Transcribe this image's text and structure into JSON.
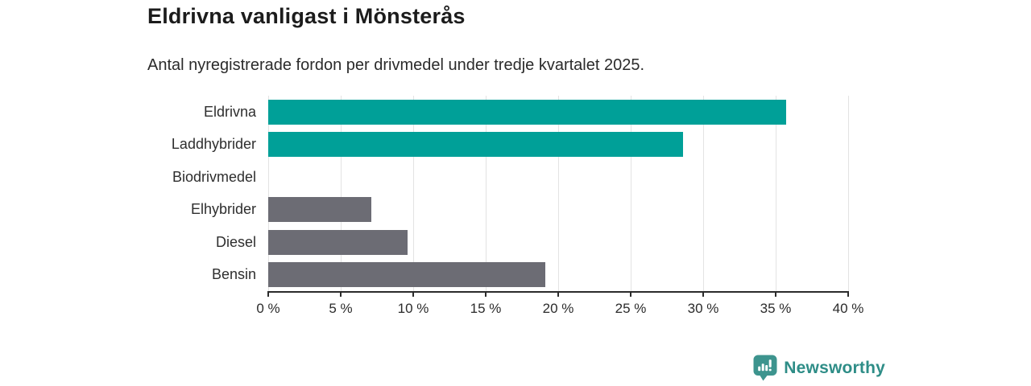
{
  "header": {
    "title": "Eldrivna vanligast i Mönsterås",
    "subtitle": "Antal nyregistrerade fordon per drivmedel under tredje kvartalet 2025."
  },
  "chart_data": {
    "type": "bar",
    "orientation": "horizontal",
    "title": "Eldrivna vanligast i Mönsterås",
    "subtitle": "Antal nyregistrerade fordon per drivmedel under tredje kvartalet 2025.",
    "categories": [
      "Eldrivna",
      "Laddhybrider",
      "Biodrivmedel",
      "Elhybrider",
      "Diesel",
      "Bensin"
    ],
    "values": [
      35.7,
      28.6,
      0,
      7.1,
      9.6,
      19.1
    ],
    "unit": "%",
    "xlabel": "",
    "ylabel": "",
    "xlim": [
      0,
      40
    ],
    "x_ticks": [
      0,
      5,
      10,
      15,
      20,
      25,
      30,
      35,
      40
    ],
    "x_tick_labels": [
      "0 %",
      "5 %",
      "10 %",
      "15 %",
      "20 %",
      "25 %",
      "30 %",
      "35 %",
      "40 %"
    ],
    "bar_colors": [
      "#00a098",
      "#00a098",
      "#00a098",
      "#6c6c74",
      "#6c6c74",
      "#6c6c74"
    ],
    "grid": true,
    "legend": false
  },
  "colors": {
    "accent_teal": "#00a098",
    "neutral_gray": "#6c6c74",
    "gridline": "#e3e3e3",
    "axis": "#2b2b2b",
    "title_text": "#1c1c1c",
    "logo_teal": "#2e8d87",
    "logo_icon_teal": "#3d948e"
  },
  "footer": {
    "brand": "Newsworthy"
  }
}
